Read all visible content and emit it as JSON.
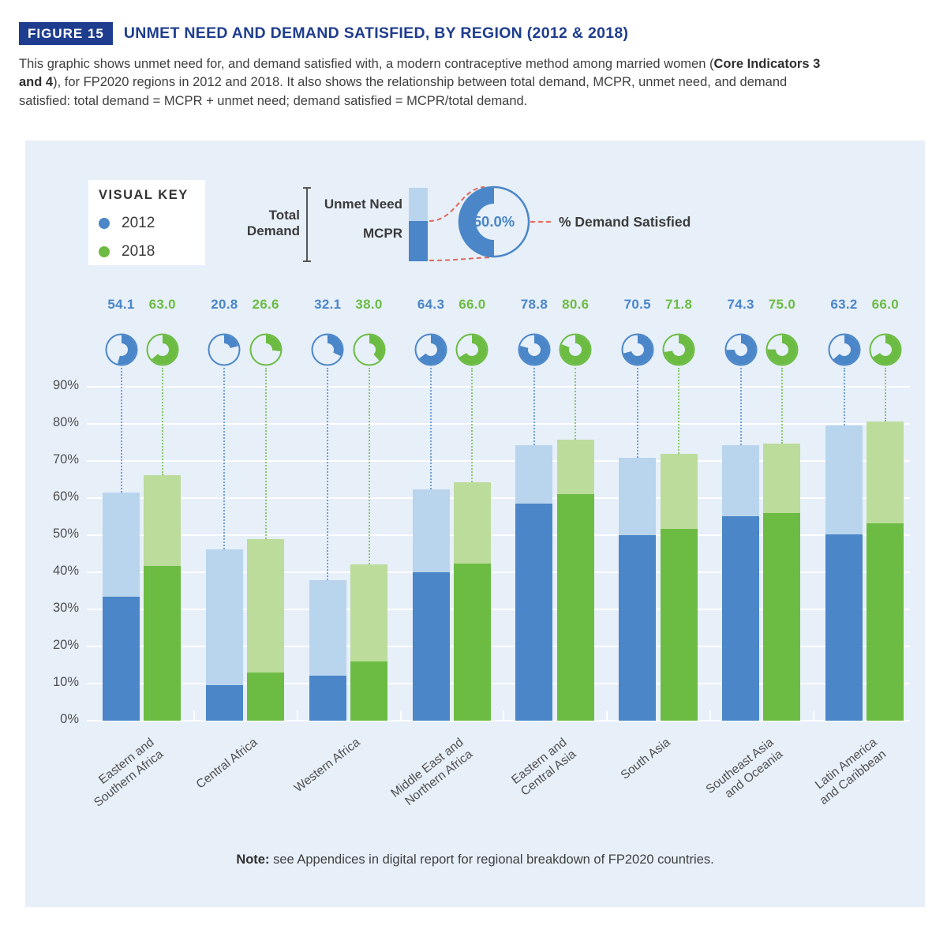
{
  "figure": {
    "badge": "FIGURE 15",
    "title": "UNMET NEED AND DEMAND SATISFIED, BY REGION (2012 & 2018)",
    "description_pre": "This graphic shows unmet need for, and demand satisfied with, a modern contraceptive method among married women (",
    "description_bold": "Core Indicators 3 and 4",
    "description_post": "), for FP2020 regions in 2012 and 2018. It also shows the relationship between total demand, MCPR, unmet need, and demand satisfied: total demand = MCPR + unmet need; demand satisfied = MCPR/total demand."
  },
  "visual_key": {
    "title": "VISUAL KEY",
    "items": [
      {
        "label": "2012",
        "color": "#4A86C8"
      },
      {
        "label": "2018",
        "color": "#6CBC43"
      }
    ]
  },
  "example": {
    "total_demand_label": "Total Demand",
    "unmet_need_label": "Unmet Need",
    "mcpr_label": "MCPR",
    "donut_value": "50.0%",
    "demand_satisfied_label": "% Demand Satisfied"
  },
  "note": {
    "label": "Note:",
    "text": " see Appendices in digital report for regional breakdown of FP2020 countries."
  },
  "chart_data": {
    "type": "bar",
    "subtype": "grouped stacked bars (MCPR + unmet need = total demand) with donut gauges showing % demand satisfied",
    "years": [
      "2012",
      "2018"
    ],
    "ylim": [
      0,
      90
    ],
    "ytick_labels": [
      "0%",
      "10%",
      "20%",
      "30%",
      "40%",
      "50%",
      "60%",
      "70%",
      "80%",
      "90%"
    ],
    "grid": true,
    "colors": {
      "mcpr_2012": "#4A86C8",
      "unmet_2012": "#B9D5EE",
      "mcpr_2018": "#6CBC43",
      "unmet_2018": "#BCDC9C",
      "panel_bg": "#E7EFF9",
      "navy": "#1E3D8F",
      "red_dash": "#E2685B"
    },
    "regions": [
      {
        "name": "Eastern and Southern Africa",
        "label_lines": [
          "Eastern and",
          "Southern Africa"
        ],
        "y2012": {
          "mcpr": 33.3,
          "total_demand": 61.5,
          "demand_satisfied": 54.1
        },
        "y2018": {
          "mcpr": 41.7,
          "total_demand": 66.2,
          "demand_satisfied": 63.0
        }
      },
      {
        "name": "Central Africa",
        "label_lines": [
          "Central Africa"
        ],
        "y2012": {
          "mcpr": 9.6,
          "total_demand": 46.1,
          "demand_satisfied": 20.8
        },
        "y2018": {
          "mcpr": 13.0,
          "total_demand": 49.0,
          "demand_satisfied": 26.6
        }
      },
      {
        "name": "Western Africa",
        "label_lines": [
          "Western Africa"
        ],
        "y2012": {
          "mcpr": 12.1,
          "total_demand": 37.8,
          "demand_satisfied": 32.1
        },
        "y2018": {
          "mcpr": 16.0,
          "total_demand": 42.2,
          "demand_satisfied": 38.0
        }
      },
      {
        "name": "Middle East and Northern Africa",
        "label_lines": [
          "Middle East and",
          "Northern Africa"
        ],
        "y2012": {
          "mcpr": 40.1,
          "total_demand": 62.3,
          "demand_satisfied": 64.3
        },
        "y2018": {
          "mcpr": 42.4,
          "total_demand": 64.2,
          "demand_satisfied": 66.0
        }
      },
      {
        "name": "Eastern and Central Asia",
        "label_lines": [
          "Eastern and",
          "Central Asia"
        ],
        "y2012": {
          "mcpr": 58.5,
          "total_demand": 74.2,
          "demand_satisfied": 78.8
        },
        "y2018": {
          "mcpr": 61.0,
          "total_demand": 75.7,
          "demand_satisfied": 80.6
        }
      },
      {
        "name": "South Asia",
        "label_lines": [
          "South Asia"
        ],
        "y2012": {
          "mcpr": 50.0,
          "total_demand": 70.9,
          "demand_satisfied": 70.5
        },
        "y2018": {
          "mcpr": 51.7,
          "total_demand": 72.0,
          "demand_satisfied": 71.8
        }
      },
      {
        "name": "Southeast Asia and Oceania",
        "label_lines": [
          "Southeast Asia",
          "and Oceania"
        ],
        "y2012": {
          "mcpr": 55.1,
          "total_demand": 74.2,
          "demand_satisfied": 74.3
        },
        "y2018": {
          "mcpr": 56.0,
          "total_demand": 74.6,
          "demand_satisfied": 75.0
        }
      },
      {
        "name": "Latin America and Caribbean",
        "label_lines": [
          "Latin America",
          "and Caribbean"
        ],
        "y2012": {
          "mcpr": 50.2,
          "total_demand": 79.5,
          "demand_satisfied": 63.2
        },
        "y2018": {
          "mcpr": 53.2,
          "total_demand": 80.6,
          "demand_satisfied": 66.0
        }
      }
    ],
    "example_gauge_value": 50.0
  }
}
